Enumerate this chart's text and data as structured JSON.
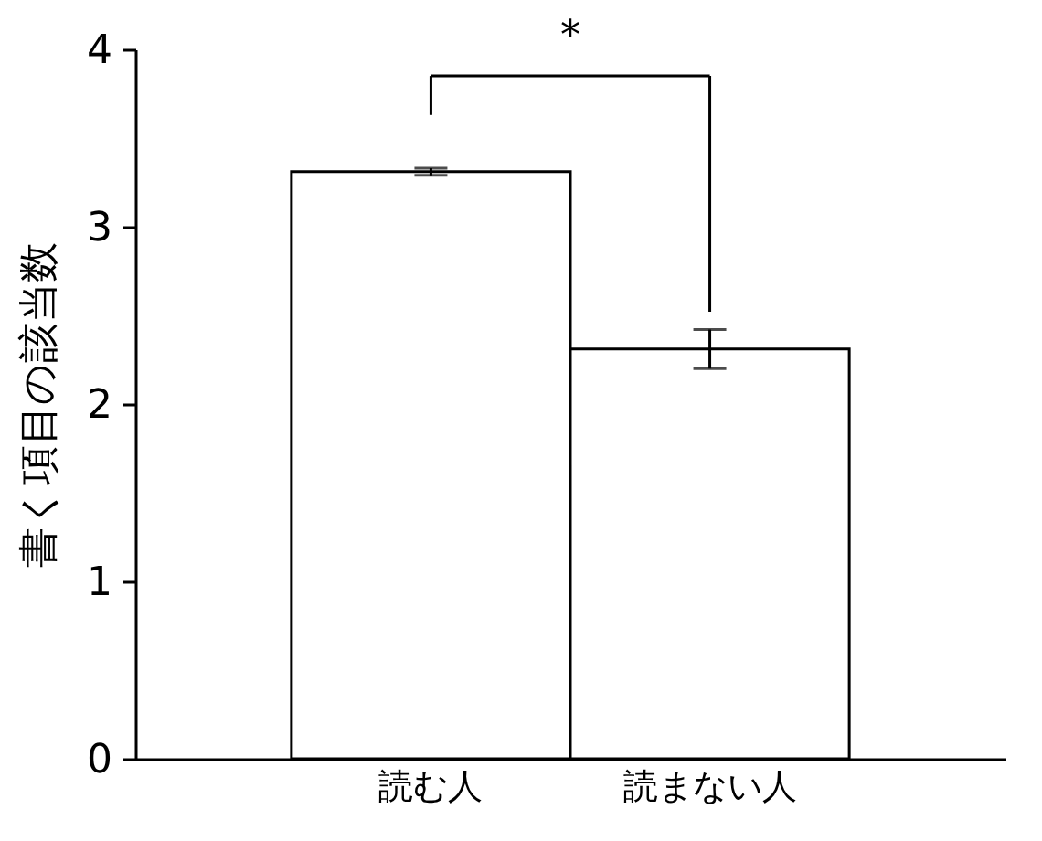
{
  "chart_data": {
    "type": "bar",
    "ylabel": "書く項目の該当数",
    "categories": [
      "読む人",
      "読まない人"
    ],
    "values": [
      3.31,
      2.31
    ],
    "errors": [
      0.02,
      0.11
    ],
    "color": "#ffffff",
    "ylim": [
      0,
      4
    ],
    "yticks": [
      0,
      1,
      2,
      3,
      4
    ],
    "grid": false,
    "annotations": [
      "*"
    ]
  }
}
